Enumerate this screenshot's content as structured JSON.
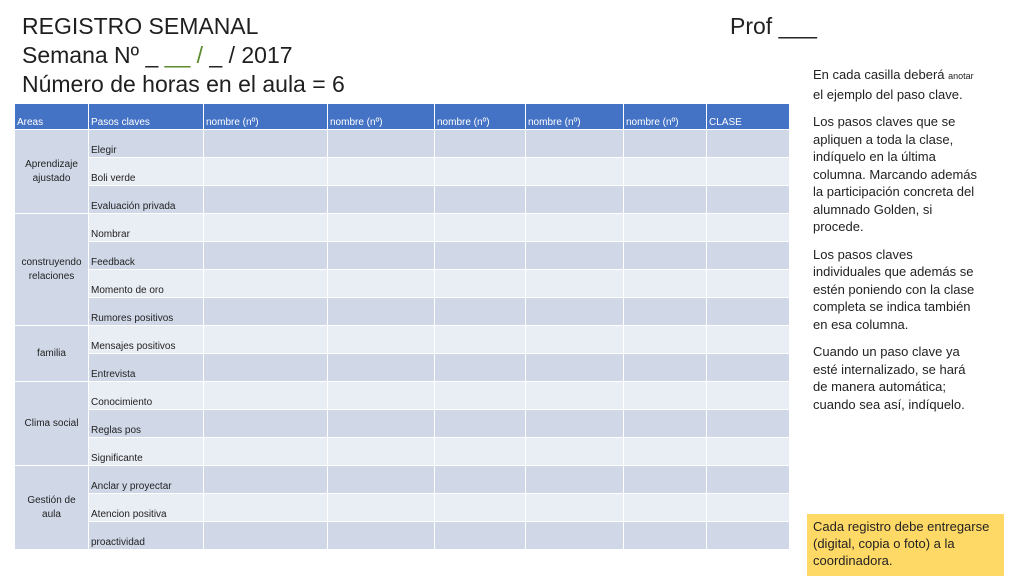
{
  "header": {
    "title": "REGISTRO SEMANAL",
    "week_prefix": "Semana Nº",
    "week_blank1": "_",
    "week_blank2": "__",
    "week_slash1": "/",
    "week_blank3": "_",
    "week_suffix": "/ 2017",
    "hours": "Número de horas en el aula = 6",
    "prof": "Prof ___"
  },
  "table": {
    "columns": [
      "Areas",
      "Pasos claves",
      "nombre (nº)",
      "nombre (nº)",
      "nombre (nº)",
      "nombre (nº)",
      "nombre (nº)",
      "CLASE"
    ],
    "areas": [
      {
        "name": "Aprendizaje ajustado",
        "pasos": [
          "Elegir",
          "Boli verde",
          "Evaluación privada"
        ]
      },
      {
        "name": "construyendo relaciones",
        "pasos": [
          "Nombrar",
          "Feedback",
          "Momento de oro",
          "Rumores positivos"
        ]
      },
      {
        "name": "familia",
        "pasos": [
          "Mensajes positivos",
          "Entrevista"
        ]
      },
      {
        "name": "Clima social",
        "pasos": [
          "Conocimiento",
          "Reglas pos",
          "Significante"
        ]
      },
      {
        "name": "Gestión de aula",
        "pasos": [
          "Anclar y proyectar",
          "Atencion positiva",
          "proactividad"
        ]
      }
    ]
  },
  "sidebar": {
    "p1_a": "En cada casilla deberá",
    "p1_small": "anotar",
    "p1_b": "el ejemplo del paso clave.",
    "p2": "Los pasos claves que se apliquen a toda la clase, indíquelo en la última columna. Marcando además la participación concreta del alumnado Golden, si procede.",
    "p3": "Los pasos claves individuales que además se estén poniendo con la clase completa se indica también en esa columna.",
    "p4": "Cuando un paso clave ya esté internalizado, se hará de manera automática; cuando sea así, indíquelo."
  },
  "note": "Cada registro debe entregarse (digital, copia o foto) a la coordinadora.",
  "colors": {
    "header_blue": "#4472c4",
    "row_dark": "#d0d8e8",
    "row_light": "#e9edf4",
    "note_yellow": "#ffd966",
    "accent_green": "#5a8a2a"
  }
}
